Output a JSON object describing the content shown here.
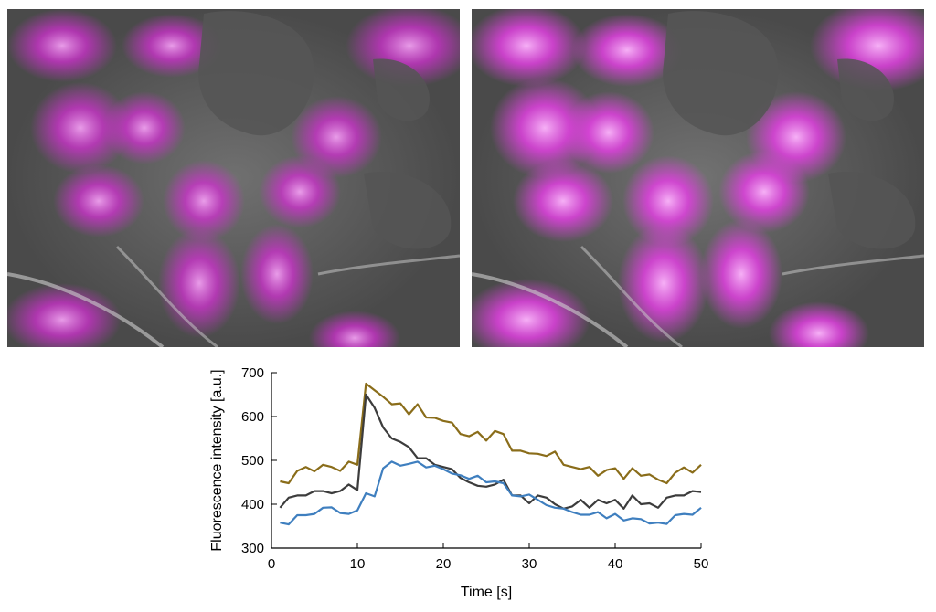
{
  "images": [
    {
      "description": "Microscopy overlay of cells (DIC with magenta fluorescence), before stimulation"
    },
    {
      "description": "Microscopy overlay of cells (DIC with magenta fluorescence), after stimulation"
    }
  ],
  "colors": {
    "series_olive": "#8a6d1a",
    "series_dark": "#3c3c3c",
    "series_blue": "#3f7fbf",
    "fluorescence": "#e040e0",
    "cell_gray": "#5a5a5a"
  },
  "chart_data": {
    "type": "line",
    "title": "",
    "xlabel": "Time [s]",
    "ylabel": "Fluorescence intensity [a.u.]",
    "xlim": [
      0,
      50
    ],
    "ylim": [
      300,
      700
    ],
    "xticks": [
      0,
      10,
      20,
      30,
      40,
      50
    ],
    "yticks": [
      300,
      400,
      500,
      600,
      700
    ],
    "grid": false,
    "legend": "none",
    "x": [
      1,
      2,
      3,
      4,
      5,
      6,
      7,
      8,
      9,
      10,
      11,
      12,
      13,
      14,
      15,
      16,
      17,
      18,
      19,
      20,
      21,
      22,
      23,
      24,
      25,
      26,
      27,
      28,
      29,
      30,
      31,
      32,
      33,
      34,
      35,
      36,
      37,
      38,
      39,
      40,
      41,
      42,
      43,
      44,
      45,
      46,
      47,
      48,
      49,
      50
    ],
    "series": [
      {
        "color": "#8a6d1a",
        "values": [
          452,
          448,
          476,
          485,
          475,
          490,
          485,
          476,
          497,
          490,
          675,
          660,
          645,
          628,
          630,
          605,
          628,
          598,
          597,
          590,
          586,
          560,
          555,
          565,
          545,
          567,
          560,
          522,
          522,
          516,
          515,
          510,
          520,
          490,
          485,
          480,
          485,
          465,
          478,
          482,
          458,
          482,
          465,
          468,
          456,
          448,
          472,
          484,
          472,
          490
        ]
      },
      {
        "color": "#3c3c3c",
        "values": [
          392,
          415,
          420,
          420,
          430,
          430,
          425,
          430,
          445,
          432,
          650,
          620,
          575,
          550,
          542,
          530,
          505,
          505,
          490,
          485,
          480,
          460,
          450,
          442,
          440,
          445,
          456,
          420,
          420,
          402,
          420,
          415,
          400,
          390,
          395,
          410,
          392,
          410,
          402,
          410,
          390,
          420,
          400,
          402,
          392,
          415,
          420,
          420,
          430,
          428
        ]
      },
      {
        "color": "#3f7fbf",
        "values": [
          358,
          354,
          375,
          375,
          378,
          392,
          393,
          380,
          378,
          386,
          425,
          418,
          482,
          497,
          488,
          492,
          497,
          484,
          488,
          480,
          470,
          466,
          458,
          465,
          450,
          452,
          448,
          420,
          418,
          422,
          410,
          398,
          392,
          390,
          382,
          376,
          376,
          382,
          368,
          378,
          363,
          368,
          366,
          356,
          358,
          355,
          375,
          378,
          376,
          392
        ]
      }
    ]
  }
}
